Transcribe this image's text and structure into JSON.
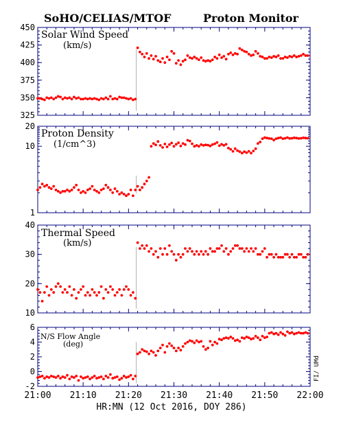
{
  "header": {
    "left_title": "SoHO/CELIAS/MTOF",
    "right_title": "Proton Monitor"
  },
  "x_axis": {
    "label": "HR:MN (12 Oct 2016, DOY 286)",
    "ticks": [
      "21:00",
      "21:10",
      "21:20",
      "21:30",
      "21:40",
      "21:50",
      "22:00"
    ],
    "range_minutes": [
      0,
      60
    ]
  },
  "side_label": "FI/ UMd",
  "colors": {
    "points": "#ff0000",
    "axes": "#000080",
    "gap_line": "#b0b0b0"
  },
  "chart_data": [
    {
      "type": "scatter",
      "title": "Solar Wind Speed",
      "unit": "(km/s)",
      "ylim": [
        325,
        450
      ],
      "yticks": [
        "450",
        "425",
        "400",
        "375",
        "350",
        "325"
      ],
      "x_minutes": [
        0.0,
        0.5,
        1.0,
        1.5,
        2.0,
        2.5,
        3.0,
        3.5,
        4.0,
        4.5,
        5.0,
        5.5,
        6.0,
        6.5,
        7.0,
        7.5,
        8.0,
        8.5,
        9.0,
        9.5,
        10.0,
        10.5,
        11.0,
        11.5,
        12.0,
        12.5,
        13.0,
        13.5,
        14.0,
        14.5,
        15.0,
        15.5,
        16.0,
        16.5,
        17.0,
        17.5,
        18.0,
        18.5,
        19.0,
        19.5,
        20.0,
        20.5,
        21.0,
        21.5,
        22.0,
        22.5,
        23.0,
        23.5,
        24.0,
        24.5,
        25.0,
        25.5,
        26.0,
        26.5,
        27.0,
        27.5,
        28.0,
        28.5,
        29.0,
        29.5,
        30.0,
        30.5,
        31.0,
        31.5,
        32.0,
        32.5,
        33.0,
        33.5,
        34.0,
        34.5,
        35.0,
        35.5,
        36.0,
        36.5,
        37.0,
        37.5,
        38.0,
        38.5,
        39.0,
        39.5,
        40.0,
        40.5,
        41.0,
        41.5,
        42.0,
        42.5,
        43.0,
        43.5,
        44.0,
        44.5,
        45.0,
        45.5,
        46.0,
        46.5,
        47.0,
        47.5,
        48.0,
        48.5,
        49.0,
        49.5,
        50.0,
        50.5,
        51.0,
        51.5,
        52.0,
        52.5,
        53.0,
        53.5,
        54.0,
        54.5,
        55.0,
        55.5,
        56.0,
        56.5,
        57.0,
        57.5,
        58.0,
        58.5,
        59.0,
        59.5
      ],
      "values": [
        349,
        349,
        348,
        347,
        350,
        349,
        350,
        348,
        350,
        352,
        351,
        348,
        350,
        349,
        350,
        348,
        351,
        349,
        350,
        348,
        348,
        349,
        348,
        349,
        348,
        349,
        348,
        347,
        349,
        348,
        350,
        348,
        352,
        348,
        349,
        348,
        351,
        350,
        350,
        349,
        348,
        349,
        347,
        348,
        421,
        415,
        412,
        408,
        413,
        406,
        410,
        405,
        409,
        403,
        401,
        406,
        400,
        408,
        404,
        416,
        413,
        399,
        403,
        397,
        402,
        404,
        410,
        407,
        406,
        408,
        406,
        404,
        407,
        403,
        402,
        403,
        402,
        404,
        408,
        406,
        411,
        407,
        409,
        405,
        412,
        414,
        411,
        413,
        412,
        420,
        418,
        416,
        415,
        412,
        410,
        411,
        416,
        413,
        409,
        408,
        406,
        406,
        408,
        407,
        409,
        408,
        410,
        406,
        406,
        408,
        407,
        409,
        408,
        410,
        408,
        409,
        410,
        412,
        410,
        410
      ],
      "n_points": 120
    },
    {
      "type": "scatter",
      "title": "Proton Density",
      "unit": "(1/cm^3)",
      "yscale": "log",
      "ylim": [
        1,
        20
      ],
      "yticks": [
        "20",
        "10",
        "1"
      ],
      "x_minutes": [
        0.0,
        0.5,
        1.0,
        1.5,
        2.0,
        2.5,
        3.0,
        3.5,
        4.0,
        4.5,
        5.0,
        5.5,
        6.0,
        6.5,
        7.0,
        7.5,
        8.0,
        8.5,
        9.0,
        9.5,
        10.0,
        10.5,
        11.0,
        11.5,
        12.0,
        12.5,
        13.0,
        13.5,
        14.0,
        14.5,
        15.0,
        15.5,
        16.0,
        16.5,
        17.0,
        17.5,
        18.0,
        18.5,
        19.0,
        19.5,
        20.0,
        20.5,
        21.0,
        21.5,
        22.0,
        22.5,
        23.0,
        23.5,
        24.0,
        24.5,
        25.0,
        25.5,
        26.0,
        26.5,
        27.0,
        27.5,
        28.0,
        28.5,
        29.0,
        29.5,
        30.0,
        30.5,
        31.0,
        31.5,
        32.0,
        32.5,
        33.0,
        33.5,
        34.0,
        34.5,
        35.0,
        35.5,
        36.0,
        36.5,
        37.0,
        37.5,
        38.0,
        38.5,
        39.0,
        39.5,
        40.0,
        40.5,
        41.0,
        41.5,
        42.0,
        42.5,
        43.0,
        43.5,
        44.0,
        44.5,
        45.0,
        45.5,
        46.0,
        46.5,
        47.0,
        47.5,
        48.0,
        48.5,
        49.0,
        49.5,
        50.0,
        50.5,
        51.0,
        51.5,
        52.0,
        52.5,
        53.0,
        53.5,
        54.0,
        54.5,
        55.0,
        55.5,
        56.0,
        56.5,
        57.0,
        57.5,
        58.0,
        58.5,
        59.0,
        59.5
      ],
      "values": [
        2.2,
        2.4,
        2.7,
        2.5,
        2.6,
        2.4,
        2.3,
        2.5,
        2.2,
        2.1,
        2.0,
        2.1,
        2.1,
        2.2,
        2.1,
        2.2,
        2.4,
        2.6,
        2.2,
        2.0,
        2.1,
        2.0,
        2.2,
        2.3,
        2.5,
        2.2,
        2.1,
        2.0,
        2.2,
        2.3,
        2.6,
        2.4,
        2.2,
        2.0,
        2.3,
        2.1,
        1.9,
        2.0,
        1.9,
        1.8,
        1.9,
        2.2,
        1.8,
        2.2,
        2.5,
        2.2,
        2.4,
        2.7,
        3.0,
        3.4,
        10.0,
        11.0,
        10.5,
        11.8,
        10.3,
        9.6,
        10.8,
        9.8,
        10.6,
        11.2,
        10.0,
        10.7,
        11.3,
        10.1,
        11.0,
        10.6,
        12.3,
        12.0,
        10.9,
        10.0,
        10.3,
        10.0,
        10.6,
        10.3,
        10.5,
        10.4,
        10.1,
        10.6,
        10.9,
        11.4,
        10.2,
        10.7,
        10.3,
        10.7,
        9.4,
        9.0,
        8.4,
        9.2,
        8.6,
        8.3,
        7.9,
        8.3,
        8.0,
        8.4,
        7.9,
        8.5,
        9.2,
        11.0,
        11.6,
        13.0,
        13.5,
        13.3,
        13.1,
        13.0,
        12.4,
        13.0,
        13.3,
        13.5,
        13.0,
        13.2,
        13.5,
        13.1,
        13.2,
        13.4,
        13.3,
        13.1,
        13.2,
        13.4,
        13.3,
        13.2
      ],
      "n_points": 120
    },
    {
      "type": "scatter",
      "title": "Thermal Speed",
      "unit": "(km/s)",
      "ylim": [
        10,
        40
      ],
      "yticks": [
        "40",
        "30",
        "20",
        "10"
      ],
      "x_minutes": [
        0.0,
        0.5,
        1.0,
        1.5,
        2.0,
        2.5,
        3.0,
        3.5,
        4.0,
        4.5,
        5.0,
        5.5,
        6.0,
        6.5,
        7.0,
        7.5,
        8.0,
        8.5,
        9.0,
        9.5,
        10.0,
        10.5,
        11.0,
        11.5,
        12.0,
        12.5,
        13.0,
        13.5,
        14.0,
        14.5,
        15.0,
        15.5,
        16.0,
        16.5,
        17.0,
        17.5,
        18.0,
        18.5,
        19.0,
        19.5,
        20.0,
        20.5,
        21.0,
        21.5,
        22.0,
        22.5,
        23.0,
        23.5,
        24.0,
        24.5,
        25.0,
        25.5,
        26.0,
        26.5,
        27.0,
        27.5,
        28.0,
        28.5,
        29.0,
        29.5,
        30.0,
        30.5,
        31.0,
        31.5,
        32.0,
        32.5,
        33.0,
        33.5,
        34.0,
        34.5,
        35.0,
        35.5,
        36.0,
        36.5,
        37.0,
        37.5,
        38.0,
        38.5,
        39.0,
        39.5,
        40.0,
        40.5,
        41.0,
        41.5,
        42.0,
        42.5,
        43.0,
        43.5,
        44.0,
        44.5,
        45.0,
        45.5,
        46.0,
        46.5,
        47.0,
        47.5,
        48.0,
        48.5,
        49.0,
        49.5,
        50.0,
        50.5,
        51.0,
        51.5,
        52.0,
        52.5,
        53.0,
        53.5,
        54.0,
        54.5,
        55.0,
        55.5,
        56.0,
        56.5,
        57.0,
        57.5,
        58.0,
        58.5,
        59.0,
        59.5
      ],
      "values": [
        18,
        17,
        14,
        17,
        19,
        16,
        18,
        17,
        19,
        20,
        19,
        17,
        18,
        17,
        19,
        16,
        18,
        15,
        17,
        18,
        19,
        16,
        17,
        16,
        18,
        17,
        16,
        17,
        19,
        15,
        18,
        17,
        19,
        18,
        16,
        17,
        18,
        16,
        18,
        19,
        18,
        16,
        17,
        15,
        34,
        32,
        33,
        32,
        33,
        31,
        32,
        30,
        31,
        29,
        32,
        30,
        32,
        30,
        33,
        31,
        30,
        28,
        30,
        29,
        30,
        32,
        31,
        32,
        31,
        30,
        31,
        30,
        31,
        30,
        31,
        30,
        32,
        31,
        31,
        32,
        32,
        33,
        31,
        32,
        30,
        31,
        32,
        33,
        33,
        32,
        32,
        31,
        32,
        31,
        32,
        31,
        32,
        30,
        30,
        31,
        32,
        29,
        30,
        30,
        29,
        30,
        29,
        29,
        29,
        30,
        30,
        29,
        30,
        29,
        29,
        30,
        30,
        29,
        29,
        30
      ],
      "n_points": 120
    },
    {
      "type": "scatter",
      "title": "N/S Flow Angle",
      "unit": "(deg)",
      "ylim": [
        -2,
        6
      ],
      "yticks": [
        "6",
        "4",
        "2",
        "0",
        "-2"
      ],
      "x_minutes": [
        0.0,
        0.5,
        1.0,
        1.5,
        2.0,
        2.5,
        3.0,
        3.5,
        4.0,
        4.5,
        5.0,
        5.5,
        6.0,
        6.5,
        7.0,
        7.5,
        8.0,
        8.5,
        9.0,
        9.5,
        10.0,
        10.5,
        11.0,
        11.5,
        12.0,
        12.5,
        13.0,
        13.5,
        14.0,
        14.5,
        15.0,
        15.5,
        16.0,
        16.5,
        17.0,
        17.5,
        18.0,
        18.5,
        19.0,
        19.5,
        20.0,
        20.5,
        21.0,
        21.5,
        22.0,
        22.5,
        23.0,
        23.5,
        24.0,
        24.5,
        25.0,
        25.5,
        26.0,
        26.5,
        27.0,
        27.5,
        28.0,
        28.5,
        29.0,
        29.5,
        30.0,
        30.5,
        31.0,
        31.5,
        32.0,
        32.5,
        33.0,
        33.5,
        34.0,
        34.5,
        35.0,
        35.5,
        36.0,
        36.5,
        37.0,
        37.5,
        38.0,
        38.5,
        39.0,
        39.5,
        40.0,
        40.5,
        41.0,
        41.5,
        42.0,
        42.5,
        43.0,
        43.5,
        44.0,
        44.5,
        45.0,
        45.5,
        46.0,
        46.5,
        47.0,
        47.5,
        48.0,
        48.5,
        49.0,
        49.5,
        50.0,
        50.5,
        51.0,
        51.5,
        52.0,
        52.5,
        53.0,
        53.5,
        54.0,
        54.5,
        55.0,
        55.5,
        56.0,
        56.5,
        57.0,
        57.5,
        58.0,
        58.5,
        59.0,
        59.5
      ],
      "values": [
        -0.8,
        -0.7,
        -0.6,
        -0.9,
        -0.7,
        -0.8,
        -0.6,
        -0.7,
        -0.8,
        -0.6,
        -0.9,
        -0.7,
        -0.8,
        -0.5,
        -1.0,
        -0.7,
        -0.8,
        -0.6,
        -1.2,
        -0.7,
        -0.9,
        -0.8,
        -0.7,
        -1.0,
        -0.8,
        -0.6,
        -0.9,
        -0.8,
        -0.7,
        -1.0,
        -0.6,
        -0.8,
        -0.4,
        -0.9,
        -0.8,
        -0.7,
        -1.1,
        -0.9,
        -0.6,
        -0.8,
        -0.7,
        -0.5,
        -1.0,
        -0.6,
        2.4,
        2.6,
        3.0,
        2.8,
        2.7,
        2.4,
        2.8,
        2.6,
        2.2,
        2.8,
        3.2,
        3.6,
        2.6,
        3.4,
        3.8,
        3.5,
        3.2,
        2.8,
        3.2,
        2.9,
        3.4,
        3.8,
        4.0,
        4.2,
        4.1,
        3.9,
        4.2,
        4.0,
        4.1,
        3.4,
        3.0,
        3.2,
        4.1,
        3.6,
        4.0,
        3.8,
        4.4,
        4.3,
        4.5,
        4.6,
        4.5,
        4.7,
        4.5,
        4.2,
        4.3,
        4.1,
        4.6,
        4.5,
        4.7,
        4.6,
        4.4,
        4.5,
        4.8,
        4.6,
        4.3,
        4.8,
        4.6,
        4.7,
        5.2,
        5.3,
        5.1,
        5.2,
        5.0,
        5.3,
        5.1,
        4.9,
        5.4,
        5.2,
        5.3,
        5.1,
        5.2,
        5.3,
        5.2,
        5.2,
        5.3,
        5.2
      ],
      "n_points": 120
    }
  ]
}
